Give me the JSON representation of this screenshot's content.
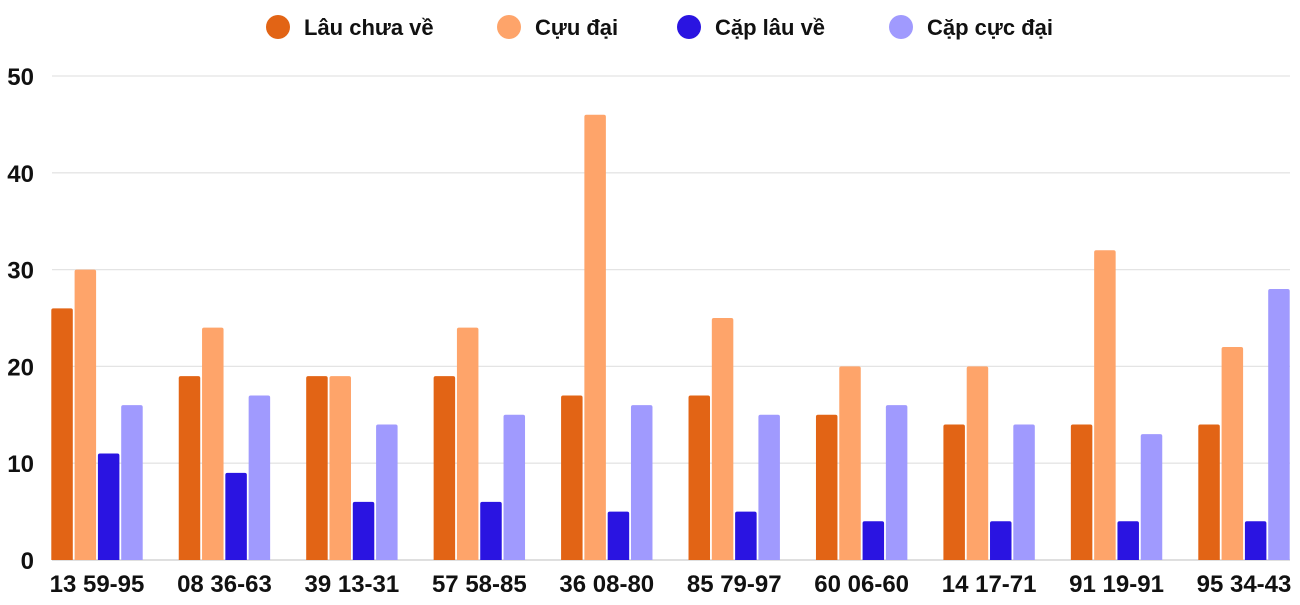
{
  "chart_data": {
    "type": "bar",
    "categories": [
      "13 59-95",
      "08 36-63",
      "39 13-31",
      "57 58-85",
      "36 08-80",
      "85 79-97",
      "60 06-60",
      "14 17-71",
      "91 19-91",
      "95 34-43"
    ],
    "series": [
      {
        "name": "Lâu chưa về",
        "color": "#E26415",
        "values": [
          26,
          19,
          19,
          19,
          17,
          17,
          15,
          14,
          14,
          14
        ]
      },
      {
        "name": "Cựu đại",
        "color": "#FEA46A",
        "values": [
          30,
          24,
          19,
          24,
          46,
          25,
          20,
          20,
          32,
          22
        ]
      },
      {
        "name": "Cặp lâu về",
        "color": "#2A14E1",
        "values": [
          11,
          9,
          6,
          6,
          5,
          5,
          4,
          4,
          4,
          4
        ]
      },
      {
        "name": "Cặp cực đại",
        "color": "#A09AFE",
        "values": [
          16,
          17,
          14,
          15,
          16,
          15,
          16,
          14,
          13,
          28
        ]
      }
    ],
    "ylim": [
      0,
      50
    ],
    "yticks": [
      "0",
      "10",
      "20",
      "30",
      "40",
      "50"
    ],
    "grid": true,
    "legend": "top-center"
  }
}
